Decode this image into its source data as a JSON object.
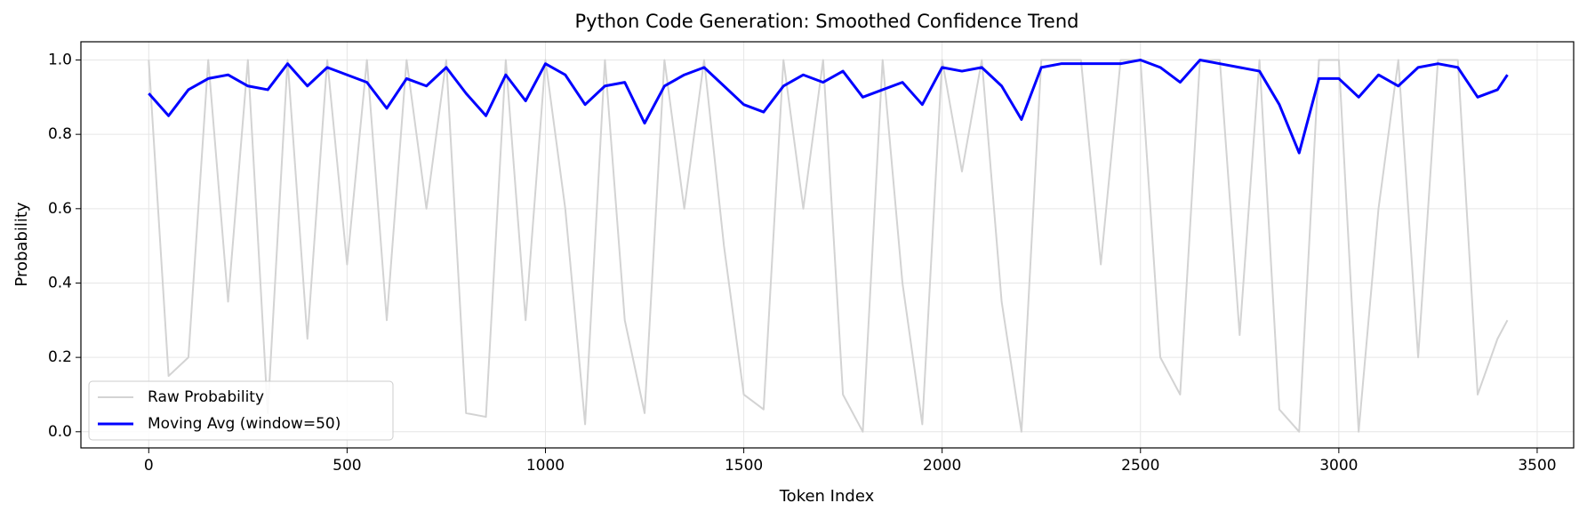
{
  "chart_data": {
    "type": "line",
    "title": "Python Code Generation: Smoothed Confidence Trend",
    "x_label": "Token Index",
    "y_label": "Probability",
    "x": [
      0,
      50,
      100,
      150,
      200,
      250,
      300,
      350,
      400,
      450,
      500,
      550,
      600,
      650,
      700,
      750,
      800,
      850,
      900,
      950,
      1000,
      1050,
      1100,
      1150,
      1200,
      1250,
      1300,
      1350,
      1400,
      1450,
      1500,
      1550,
      1600,
      1650,
      1700,
      1750,
      1800,
      1850,
      1900,
      1950,
      2000,
      2050,
      2100,
      2150,
      2200,
      2250,
      2300,
      2350,
      2400,
      2450,
      2500,
      2550,
      2600,
      2650,
      2700,
      2750,
      2800,
      2850,
      2900,
      2950,
      3000,
      3050,
      3100,
      3150,
      3200,
      3250,
      3300,
      3350,
      3400,
      3425
    ],
    "series": [
      {
        "name": "Raw Probability",
        "color": "#d3d3d3",
        "width": 2,
        "values": [
          1.0,
          0.15,
          0.2,
          1.0,
          0.35,
          1.0,
          0.05,
          1.0,
          0.25,
          1.0,
          0.45,
          1.0,
          0.3,
          1.0,
          0.6,
          1.0,
          0.05,
          0.04,
          1.0,
          0.3,
          1.0,
          0.6,
          0.02,
          1.0,
          0.3,
          0.05,
          1.0,
          0.6,
          1.0,
          0.5,
          0.1,
          0.06,
          1.0,
          0.6,
          1.0,
          0.1,
          0.0,
          1.0,
          0.4,
          0.02,
          1.0,
          0.7,
          1.0,
          0.35,
          0.0,
          1.0,
          1.0,
          1.0,
          0.45,
          1.0,
          1.0,
          0.2,
          0.1,
          1.0,
          1.0,
          0.26,
          1.0,
          0.06,
          0.0,
          1.0,
          1.0,
          0.0,
          0.6,
          1.0,
          0.2,
          1.0,
          1.0,
          0.1,
          0.25,
          0.3
        ]
      },
      {
        "name": "Moving Avg (window=50)",
        "color": "#0000ff",
        "width": 3,
        "values": [
          0.91,
          0.85,
          0.92,
          0.95,
          0.96,
          0.93,
          0.92,
          0.99,
          0.93,
          0.98,
          0.96,
          0.94,
          0.87,
          0.95,
          0.93,
          0.98,
          0.91,
          0.85,
          0.96,
          0.89,
          0.99,
          0.96,
          0.88,
          0.93,
          0.94,
          0.83,
          0.93,
          0.96,
          0.98,
          0.93,
          0.88,
          0.86,
          0.93,
          0.96,
          0.94,
          0.97,
          0.9,
          0.92,
          0.94,
          0.88,
          0.98,
          0.97,
          0.98,
          0.93,
          0.84,
          0.98,
          0.99,
          0.99,
          0.99,
          0.99,
          1.0,
          0.98,
          0.94,
          1.0,
          0.99,
          0.98,
          0.97,
          0.88,
          0.75,
          0.95,
          0.95,
          0.9,
          0.96,
          0.93,
          0.98,
          0.99,
          0.98,
          0.9,
          0.92,
          0.96
        ]
      }
    ],
    "xlim": [
      -171,
      3592
    ],
    "ylim": [
      -0.0435,
      1.049
    ],
    "xticks": [
      0,
      500,
      1000,
      1500,
      2000,
      2500,
      3000,
      3500
    ],
    "yticks": [
      {
        "value": 0,
        "label": "0.0"
      },
      0.2,
      0.4,
      0.6,
      0.8,
      {
        "value": 1,
        "label": "1.0"
      }
    ],
    "grid": true,
    "legend": "lower left"
  }
}
